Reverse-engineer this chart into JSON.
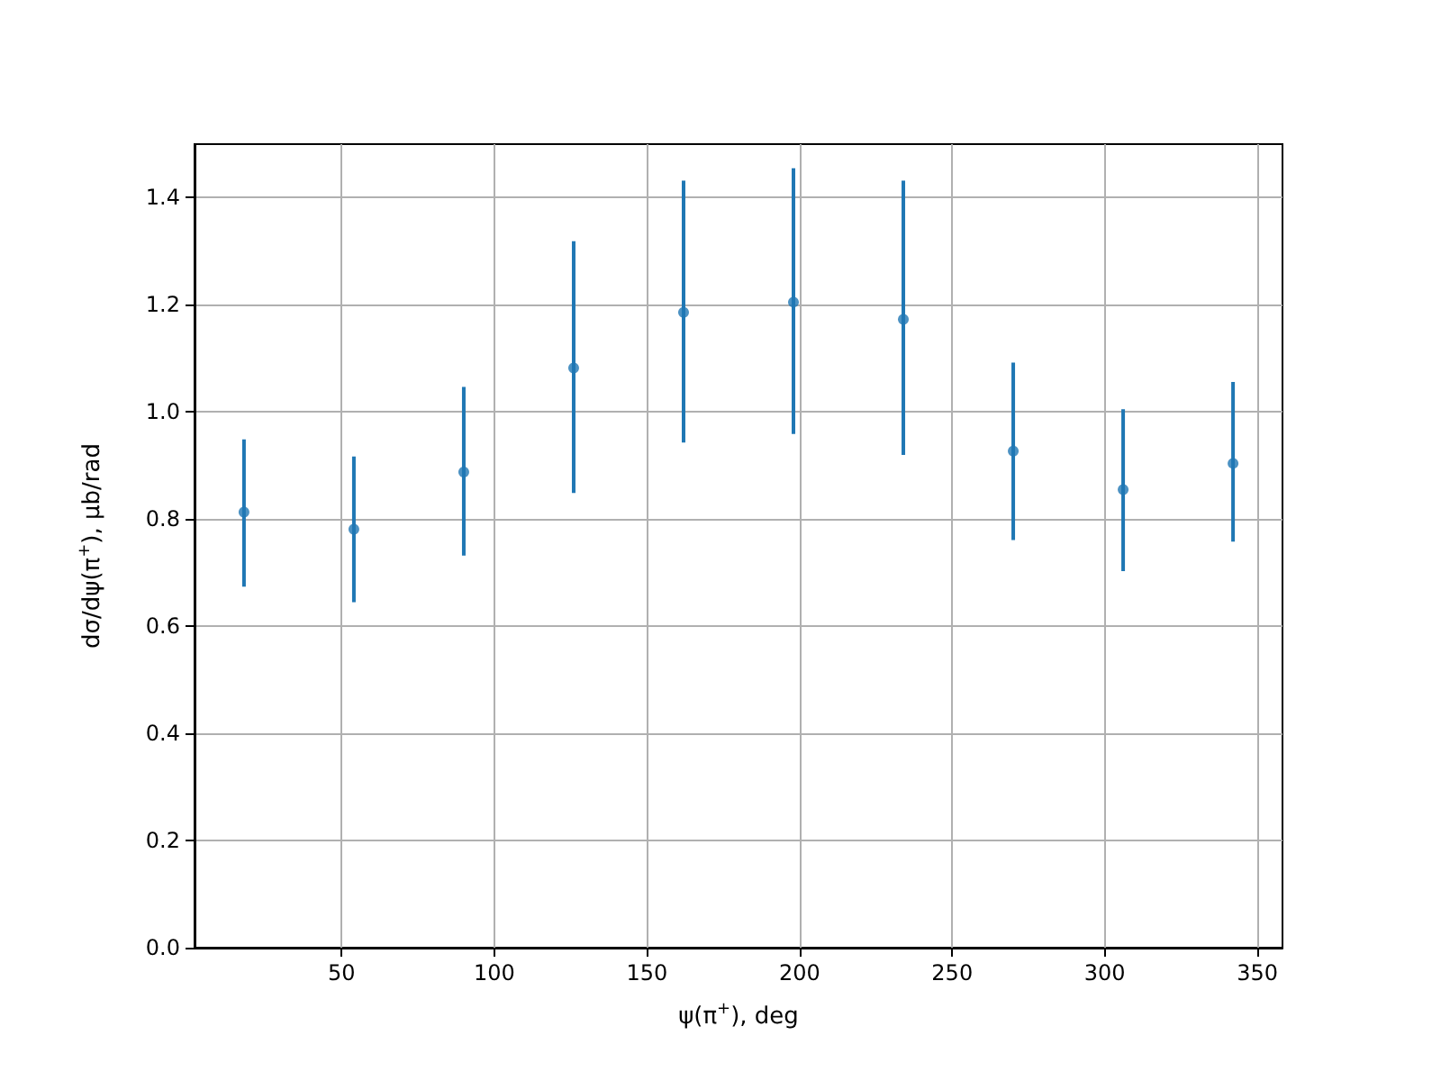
{
  "chart_data": {
    "type": "scatter",
    "xlabel": "ψ(π$^{+}$), deg",
    "ylabel": "dσ/dψ(π$^{+}$), μb/rad",
    "x": [
      18,
      54,
      90,
      126,
      162,
      198,
      234,
      270,
      306,
      342
    ],
    "series": [
      {
        "color": "#1f77b4",
        "values": [
          0.813,
          0.781,
          0.888,
          1.082,
          1.186,
          1.205,
          1.173,
          0.927,
          0.855,
          0.904
        ],
        "errors": [
          [
            0.674,
            0.949
          ],
          [
            0.645,
            0.917
          ],
          [
            0.732,
            1.047
          ],
          [
            0.849,
            1.319
          ],
          [
            0.943,
            1.432
          ],
          [
            0.959,
            1.455
          ],
          [
            0.92,
            1.432
          ],
          [
            0.761,
            1.092
          ],
          [
            0.703,
            1.005
          ],
          [
            0.758,
            1.056
          ]
        ]
      }
    ],
    "xlim": [
      1.8,
      358.2
    ],
    "xticks": [
      50,
      100,
      150,
      200,
      250,
      300,
      350
    ],
    "ylim": [
      0,
      1.5
    ],
    "yticks": [
      {
        "value": 0,
        "label": "0.0"
      },
      0.2,
      0.4,
      0.6,
      0.8,
      {
        "value": 1,
        "label": "1.0"
      },
      1.2,
      1.4
    ],
    "grid": true,
    "marker": "circle"
  }
}
